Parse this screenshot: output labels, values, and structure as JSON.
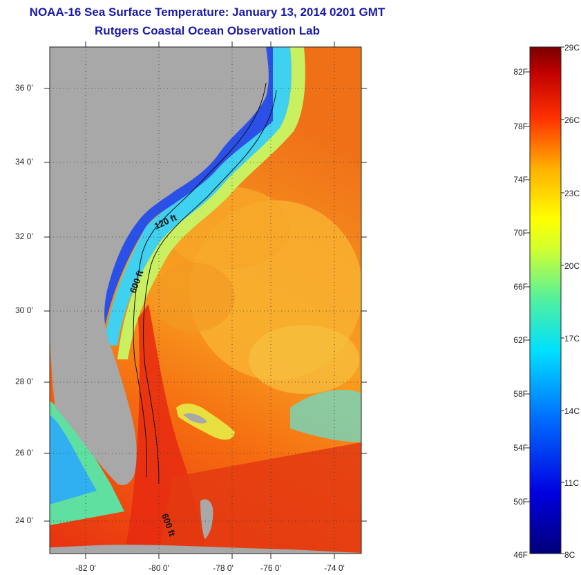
{
  "title_line1": "NOAA-16 Sea Surface Temperature:  January 13, 2014 0201 GMT",
  "title_line2": "Rutgers Coastal Ocean Observation Lab",
  "latitude_labels": [
    "36 0'",
    "34 0'",
    "32 0'",
    "30 0'",
    "28 0'",
    "26 0'",
    "24 0'"
  ],
  "longitude_labels": [
    "-82 0'",
    "-80 0'",
    "-78 0'",
    "-76 0'",
    "-74 0'"
  ],
  "contours": [
    "120 ft",
    "600 ft",
    "600 ft"
  ],
  "colorbar": {
    "fahrenheit": [
      "82F",
      "78F",
      "74F",
      "70F",
      "66F",
      "62F",
      "58F",
      "54F",
      "50F",
      "46F"
    ],
    "celsius": [
      "29C",
      "26C",
      "23C",
      "20C",
      "17C",
      "14C",
      "11C",
      "8C"
    ]
  },
  "colors": {
    "land": "#a8a8a8",
    "title": "#1a1aa6"
  }
}
